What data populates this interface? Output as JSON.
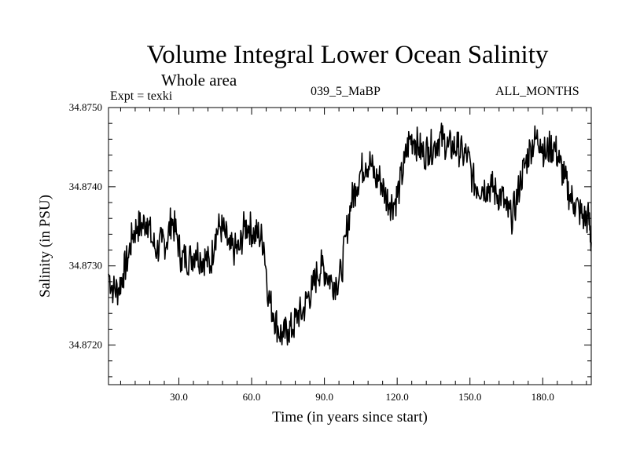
{
  "header": {
    "expt": "Expt = texki",
    "run_id": "039_5_MaBP",
    "period": "ALL_MONTHS"
  },
  "chart_data": {
    "type": "line",
    "title": "Volume Integral Lower Ocean Salinity",
    "subtitle": "Whole area",
    "xlabel": "Time (in years since start)",
    "ylabel": "Salinity (in PSU)",
    "xlim": [
      1,
      200
    ],
    "ylim": [
      34.8715,
      34.875
    ],
    "xticks": [
      30,
      60,
      90,
      120,
      150,
      180
    ],
    "xtick_labels": [
      "30.0",
      "60.0",
      "90.0",
      "120.0",
      "150.0",
      "180.0"
    ],
    "yticks": [
      34.872,
      34.873,
      34.874,
      34.875
    ],
    "ytick_labels": [
      "34.8720",
      "34.8730",
      "34.8740",
      "34.8750"
    ],
    "grid": false,
    "series": [
      {
        "name": "Salinity",
        "x": [
          1,
          3,
          5,
          7,
          9,
          11,
          13,
          15,
          17,
          19,
          21,
          23,
          25,
          27,
          29,
          31,
          33,
          35,
          37,
          39,
          41,
          43,
          45,
          47,
          49,
          51,
          53,
          55,
          57,
          59,
          61,
          63,
          65,
          67,
          69,
          71,
          73,
          75,
          77,
          79,
          81,
          83,
          85,
          87,
          89,
          91,
          93,
          95,
          97,
          99,
          101,
          103,
          105,
          107,
          109,
          111,
          113,
          115,
          117,
          119,
          121,
          123,
          125,
          127,
          129,
          131,
          133,
          135,
          137,
          139,
          141,
          143,
          145,
          147,
          149,
          151,
          153,
          155,
          157,
          159,
          161,
          163,
          165,
          167,
          169,
          171,
          173,
          175,
          177,
          179,
          181,
          183,
          185,
          187,
          189,
          191,
          193,
          195,
          197,
          199,
          200
        ],
        "values": [
          34.8729,
          34.8727,
          34.8727,
          34.8729,
          34.8731,
          34.8734,
          34.8735,
          34.8735,
          34.8736,
          34.8733,
          34.8732,
          34.8733,
          34.8733,
          34.8736,
          34.8734,
          34.8731,
          34.8731,
          34.8731,
          34.8732,
          34.8731,
          34.8731,
          34.873,
          34.8734,
          34.8735,
          34.8734,
          34.8732,
          34.8732,
          34.8732,
          34.8735,
          34.8735,
          34.8734,
          34.8734,
          34.8733,
          34.8726,
          34.8724,
          34.8722,
          34.8721,
          34.8722,
          34.8722,
          34.8724,
          34.8724,
          34.8726,
          34.8727,
          34.8729,
          34.873,
          34.8729,
          34.8728,
          34.8728,
          34.8729,
          34.8734,
          34.8738,
          34.874,
          34.8742,
          34.8743,
          34.8743,
          34.8741,
          34.8741,
          34.8739,
          34.8738,
          34.8738,
          34.874,
          34.8743,
          34.8746,
          34.8746,
          34.8745,
          34.8744,
          34.8745,
          34.8745,
          34.8746,
          34.8746,
          34.8745,
          34.8745,
          34.8745,
          34.8744,
          34.8744,
          34.8741,
          34.874,
          34.874,
          34.874,
          34.874,
          34.8739,
          34.8739,
          34.8737,
          34.8736,
          34.8738,
          34.8741,
          34.8743,
          34.8745,
          34.8746,
          34.8746,
          34.8744,
          34.8745,
          34.8745,
          34.8743,
          34.8741,
          34.8739,
          34.8738,
          34.8737,
          34.8736,
          34.8736,
          34.8733
        ]
      }
    ]
  }
}
